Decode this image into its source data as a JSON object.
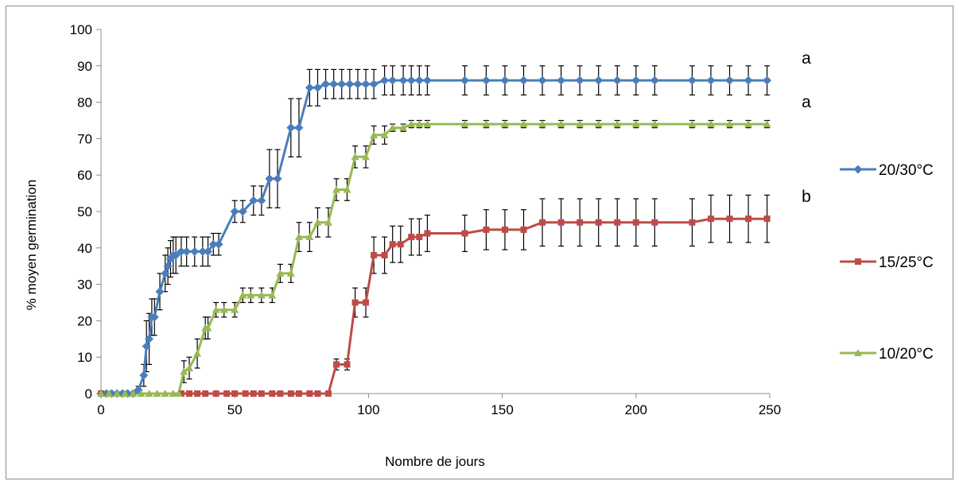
{
  "chart_data": {
    "type": "line",
    "title": "",
    "xlabel": "Nombre de jours",
    "ylabel": "% moyen germination",
    "xlim": [
      0,
      250
    ],
    "ylim": [
      0,
      100
    ],
    "xticks": [
      0,
      50,
      100,
      150,
      200,
      250
    ],
    "yticks": [
      0,
      10,
      20,
      30,
      40,
      50,
      60,
      70,
      80,
      90,
      100
    ],
    "x_tick_labels": [
      "0",
      "50",
      "100",
      "150",
      "200",
      "250"
    ],
    "y_tick_labels": [
      "0",
      "10",
      "20",
      "30",
      "40",
      "50",
      "60",
      "70",
      "80",
      "90",
      "100"
    ],
    "grid": false,
    "legend_position": "right",
    "series": [
      {
        "name": "20/30°C",
        "color": "#4a7ebb",
        "marker": "diamond",
        "points": [
          [
            0,
            0
          ],
          [
            2,
            0
          ],
          [
            4,
            0
          ],
          [
            6,
            0
          ],
          [
            8,
            0
          ],
          [
            10,
            0
          ],
          [
            12,
            0
          ],
          [
            14,
            1
          ],
          [
            16,
            5
          ],
          [
            17,
            13
          ],
          [
            18,
            15
          ],
          [
            19,
            21
          ],
          [
            20,
            21
          ],
          [
            22,
            28
          ],
          [
            24,
            33
          ],
          [
            25,
            35
          ],
          [
            26,
            37
          ],
          [
            27,
            38
          ],
          [
            28,
            38
          ],
          [
            30,
            39
          ],
          [
            32,
            39
          ],
          [
            35,
            39
          ],
          [
            38,
            39
          ],
          [
            40,
            39
          ],
          [
            42,
            41
          ],
          [
            44,
            41
          ],
          [
            50,
            50
          ],
          [
            53,
            50
          ],
          [
            57,
            53
          ],
          [
            60,
            53
          ],
          [
            63,
            59
          ],
          [
            66,
            59
          ],
          [
            71,
            73
          ],
          [
            74,
            73
          ],
          [
            78,
            84
          ],
          [
            81,
            84
          ],
          [
            84,
            85
          ],
          [
            87,
            85
          ],
          [
            90,
            85
          ],
          [
            93,
            85
          ],
          [
            96,
            85
          ],
          [
            99,
            85
          ],
          [
            102,
            85
          ],
          [
            106,
            86
          ],
          [
            109,
            86
          ],
          [
            113,
            86
          ],
          [
            116,
            86
          ],
          [
            119,
            86
          ],
          [
            122,
            86
          ],
          [
            136,
            86
          ],
          [
            144,
            86
          ],
          [
            151,
            86
          ],
          [
            158,
            86
          ],
          [
            165,
            86
          ],
          [
            172,
            86
          ],
          [
            179,
            86
          ],
          [
            186,
            86
          ],
          [
            193,
            86
          ],
          [
            200,
            86
          ],
          [
            207,
            86
          ],
          [
            221,
            86
          ],
          [
            228,
            86
          ],
          [
            235,
            86
          ],
          [
            242,
            86
          ],
          [
            249,
            86
          ]
        ],
        "errors": [
          [
            0,
            0
          ],
          [
            2,
            0
          ],
          [
            4,
            0
          ],
          [
            6,
            0
          ],
          [
            8,
            0
          ],
          [
            10,
            0
          ],
          [
            12,
            0
          ],
          [
            14,
            1
          ],
          [
            16,
            3
          ],
          [
            17,
            7
          ],
          [
            18,
            7
          ],
          [
            19,
            5
          ],
          [
            20,
            5
          ],
          [
            22,
            5
          ],
          [
            24,
            5
          ],
          [
            25,
            5
          ],
          [
            26,
            5
          ],
          [
            27,
            5
          ],
          [
            28,
            5
          ],
          [
            30,
            4
          ],
          [
            32,
            4
          ],
          [
            35,
            4
          ],
          [
            38,
            4
          ],
          [
            40,
            4
          ],
          [
            42,
            3
          ],
          [
            44,
            3
          ],
          [
            50,
            3
          ],
          [
            53,
            3
          ],
          [
            57,
            4
          ],
          [
            60,
            4
          ],
          [
            63,
            8
          ],
          [
            66,
            8
          ],
          [
            71,
            8
          ],
          [
            74,
            8
          ],
          [
            78,
            5
          ],
          [
            81,
            5
          ],
          [
            84,
            4
          ],
          [
            87,
            4
          ],
          [
            90,
            4
          ],
          [
            93,
            4
          ],
          [
            96,
            4
          ],
          [
            99,
            4
          ],
          [
            102,
            4
          ],
          [
            106,
            4
          ],
          [
            109,
            4
          ],
          [
            113,
            4
          ],
          [
            116,
            4
          ],
          [
            119,
            4
          ],
          [
            122,
            4
          ],
          [
            136,
            4
          ],
          [
            144,
            4
          ],
          [
            151,
            4
          ],
          [
            158,
            4
          ],
          [
            165,
            4
          ],
          [
            172,
            4
          ],
          [
            179,
            4
          ],
          [
            186,
            4
          ],
          [
            193,
            4
          ],
          [
            200,
            4
          ],
          [
            207,
            4
          ],
          [
            221,
            4
          ],
          [
            228,
            4
          ],
          [
            235,
            4
          ],
          [
            242,
            4
          ],
          [
            249,
            4
          ]
        ],
        "annotation": "a"
      },
      {
        "name": "15/25°C",
        "color": "#be4b48",
        "marker": "square",
        "points": [
          [
            0,
            0
          ],
          [
            30,
            0
          ],
          [
            33,
            0
          ],
          [
            36,
            0
          ],
          [
            39,
            0
          ],
          [
            43,
            0
          ],
          [
            47,
            0
          ],
          [
            50,
            0
          ],
          [
            54,
            0
          ],
          [
            57,
            0
          ],
          [
            60,
            0
          ],
          [
            64,
            0
          ],
          [
            67,
            0
          ],
          [
            71,
            0
          ],
          [
            74,
            0
          ],
          [
            78,
            0
          ],
          [
            81,
            0
          ],
          [
            85,
            0
          ],
          [
            88,
            8
          ],
          [
            92,
            8
          ],
          [
            95,
            25
          ],
          [
            99,
            25
          ],
          [
            102,
            38
          ],
          [
            106,
            38
          ],
          [
            109,
            41
          ],
          [
            112,
            41
          ],
          [
            116,
            43
          ],
          [
            119,
            43
          ],
          [
            122,
            44
          ],
          [
            136,
            44
          ],
          [
            144,
            45
          ],
          [
            151,
            45
          ],
          [
            158,
            45
          ],
          [
            165,
            47
          ],
          [
            172,
            47
          ],
          [
            179,
            47
          ],
          [
            186,
            47
          ],
          [
            193,
            47
          ],
          [
            200,
            47
          ],
          [
            207,
            47
          ],
          [
            221,
            47
          ],
          [
            228,
            48
          ],
          [
            235,
            48
          ],
          [
            242,
            48
          ],
          [
            249,
            48
          ]
        ],
        "errors": [
          [
            0,
            0
          ],
          [
            30,
            0
          ],
          [
            33,
            0
          ],
          [
            36,
            0
          ],
          [
            39,
            0
          ],
          [
            43,
            0
          ],
          [
            47,
            0
          ],
          [
            50,
            0
          ],
          [
            54,
            0
          ],
          [
            57,
            0
          ],
          [
            60,
            0
          ],
          [
            64,
            0
          ],
          [
            67,
            0
          ],
          [
            71,
            0
          ],
          [
            74,
            0
          ],
          [
            78,
            0
          ],
          [
            81,
            0
          ],
          [
            85,
            0
          ],
          [
            88,
            1.5
          ],
          [
            92,
            1.5
          ],
          [
            95,
            4
          ],
          [
            99,
            4
          ],
          [
            102,
            5
          ],
          [
            106,
            5
          ],
          [
            109,
            5
          ],
          [
            112,
            5
          ],
          [
            116,
            5
          ],
          [
            119,
            5
          ],
          [
            122,
            5
          ],
          [
            136,
            5
          ],
          [
            144,
            5.5
          ],
          [
            151,
            5.5
          ],
          [
            158,
            5.5
          ],
          [
            165,
            6.5
          ],
          [
            172,
            6.5
          ],
          [
            179,
            6.5
          ],
          [
            186,
            6.5
          ],
          [
            193,
            6.5
          ],
          [
            200,
            6.5
          ],
          [
            207,
            6.5
          ],
          [
            221,
            6.5
          ],
          [
            228,
            6.5
          ],
          [
            235,
            6.5
          ],
          [
            242,
            6.5
          ],
          [
            249,
            6.5
          ]
        ],
        "annotation": "b"
      },
      {
        "name": "10/20°C",
        "color": "#98b954",
        "marker": "triangle",
        "points": [
          [
            0,
            0
          ],
          [
            3,
            0
          ],
          [
            6,
            0
          ],
          [
            9,
            0
          ],
          [
            12,
            0
          ],
          [
            15,
            0
          ],
          [
            18,
            0
          ],
          [
            21,
            0
          ],
          [
            24,
            0
          ],
          [
            27,
            0
          ],
          [
            29,
            0
          ],
          [
            31,
            6
          ],
          [
            33,
            7
          ],
          [
            36,
            11
          ],
          [
            39,
            18
          ],
          [
            40,
            18
          ],
          [
            43,
            23
          ],
          [
            46,
            23
          ],
          [
            50,
            23
          ],
          [
            53,
            27
          ],
          [
            56,
            27
          ],
          [
            60,
            27
          ],
          [
            64,
            27
          ],
          [
            67,
            33
          ],
          [
            71,
            33
          ],
          [
            74,
            43
          ],
          [
            78,
            43
          ],
          [
            81,
            47
          ],
          [
            85,
            47
          ],
          [
            88,
            56
          ],
          [
            92,
            56
          ],
          [
            95,
            65
          ],
          [
            99,
            65
          ],
          [
            102,
            71
          ],
          [
            106,
            71
          ],
          [
            109,
            73
          ],
          [
            113,
            73
          ],
          [
            116,
            74
          ],
          [
            119,
            74
          ],
          [
            122,
            74
          ],
          [
            136,
            74
          ],
          [
            144,
            74
          ],
          [
            151,
            74
          ],
          [
            158,
            74
          ],
          [
            165,
            74
          ],
          [
            172,
            74
          ],
          [
            179,
            74
          ],
          [
            186,
            74
          ],
          [
            193,
            74
          ],
          [
            200,
            74
          ],
          [
            207,
            74
          ],
          [
            221,
            74
          ],
          [
            228,
            74
          ],
          [
            235,
            74
          ],
          [
            242,
            74
          ],
          [
            249,
            74
          ]
        ],
        "errors": [
          [
            0,
            0
          ],
          [
            3,
            0
          ],
          [
            6,
            0
          ],
          [
            9,
            0
          ],
          [
            12,
            0
          ],
          [
            15,
            0
          ],
          [
            18,
            0
          ],
          [
            21,
            0
          ],
          [
            24,
            0
          ],
          [
            27,
            0
          ],
          [
            29,
            0
          ],
          [
            31,
            3
          ],
          [
            33,
            3
          ],
          [
            36,
            4
          ],
          [
            39,
            3
          ],
          [
            40,
            3
          ],
          [
            43,
            2
          ],
          [
            46,
            2
          ],
          [
            50,
            2
          ],
          [
            53,
            2
          ],
          [
            56,
            2
          ],
          [
            60,
            2
          ],
          [
            64,
            2
          ],
          [
            67,
            2.5
          ],
          [
            71,
            2.5
          ],
          [
            74,
            4
          ],
          [
            78,
            4
          ],
          [
            81,
            4
          ],
          [
            85,
            4
          ],
          [
            88,
            3
          ],
          [
            92,
            3
          ],
          [
            95,
            3
          ],
          [
            99,
            3
          ],
          [
            102,
            2.5
          ],
          [
            106,
            2.5
          ],
          [
            109,
            1
          ],
          [
            113,
            1
          ],
          [
            116,
            1
          ],
          [
            119,
            1
          ],
          [
            122,
            1
          ],
          [
            136,
            1
          ],
          [
            144,
            1
          ],
          [
            151,
            1
          ],
          [
            158,
            1
          ],
          [
            165,
            1
          ],
          [
            172,
            1
          ],
          [
            179,
            1
          ],
          [
            186,
            1
          ],
          [
            193,
            1
          ],
          [
            200,
            1
          ],
          [
            207,
            1
          ],
          [
            221,
            1
          ],
          [
            228,
            1
          ],
          [
            235,
            1
          ],
          [
            242,
            1
          ],
          [
            249,
            1
          ]
        ],
        "annotation": "a"
      }
    ]
  }
}
